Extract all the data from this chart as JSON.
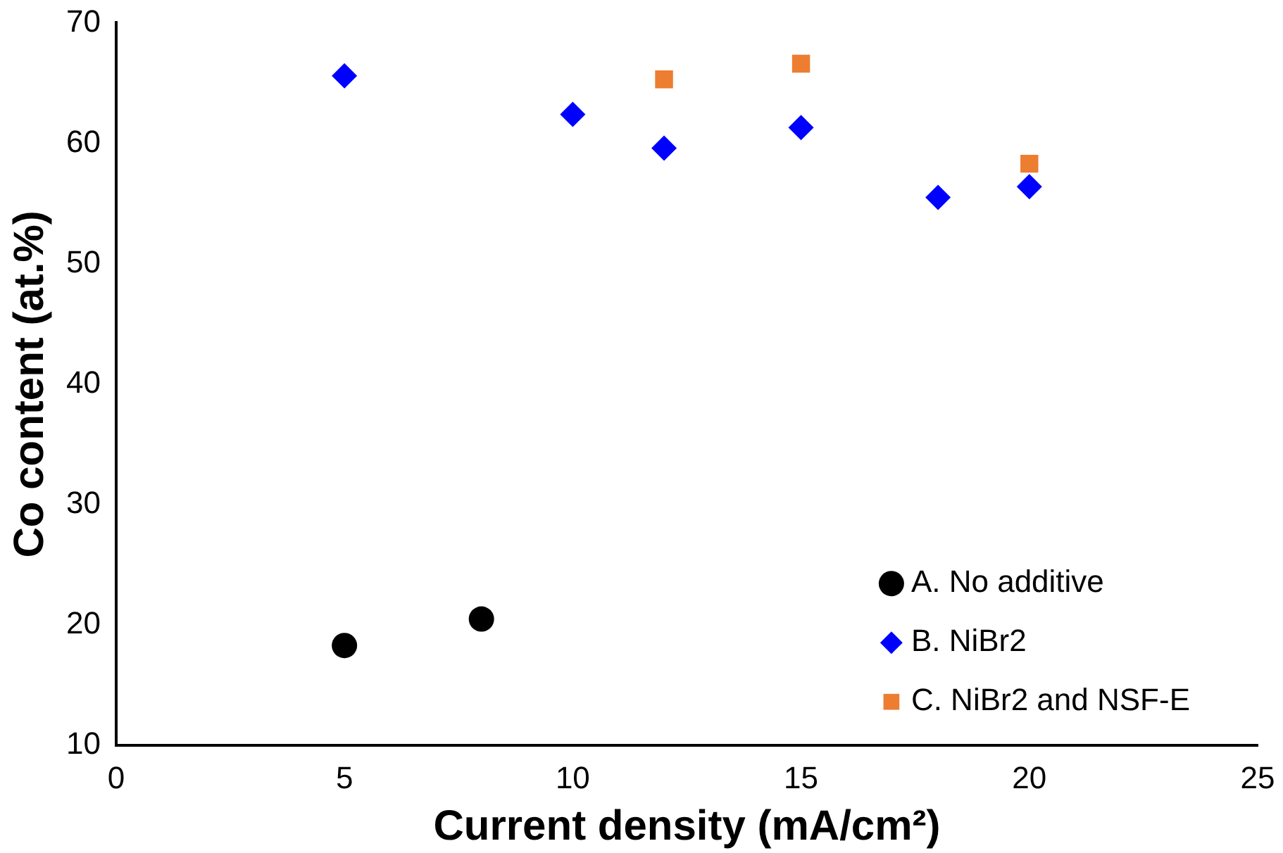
{
  "chart_data": {
    "type": "scatter",
    "xlabel": "Current density (mA/cm²)",
    "ylabel": "Co content (at.%)",
    "xlim": [
      0,
      25
    ],
    "xticks": [
      0,
      5,
      10,
      15,
      20,
      25
    ],
    "ylim": [
      10,
      70
    ],
    "yticks": [
      10,
      20,
      30,
      40,
      50,
      60,
      70
    ],
    "grid": false,
    "legend": "bottom right",
    "series": [
      {
        "name": "A. No additive",
        "color": "#000000",
        "marker": "circle",
        "x": [
          5,
          8
        ],
        "values": [
          18.3,
          20.5
        ]
      },
      {
        "name": "B. NiBr2",
        "color": "#0000ff",
        "marker": "diamond",
        "x": [
          5,
          10,
          12,
          15,
          18,
          20
        ],
        "values": [
          65.6,
          62.4,
          59.6,
          61.3,
          55.5,
          56.4
        ]
      },
      {
        "name": "C. NiBr2 and NSF-E",
        "color": "#ed7d31",
        "marker": "square",
        "x": [
          12,
          15,
          20
        ],
        "values": [
          65.3,
          66.6,
          58.3
        ]
      }
    ]
  }
}
